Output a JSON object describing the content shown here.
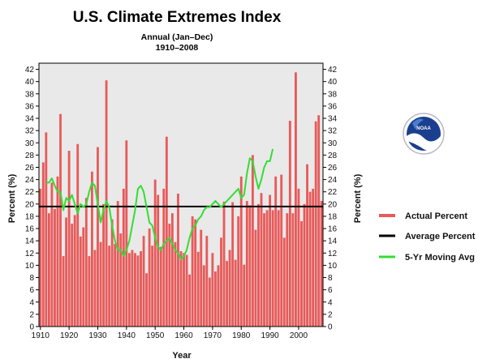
{
  "chart_data": {
    "type": "bar",
    "title": "U.S. Climate Extremes Index",
    "subtitle_line1": "Annual (Jan–Dec)",
    "subtitle_line2": "1910–2008",
    "xlabel": "Year",
    "ylabel": "Percent (%)",
    "ylabel_right": "Percent (%)",
    "ylim": [
      0,
      43
    ],
    "yticks": [
      "0",
      "2",
      "4",
      "6",
      "8",
      "10",
      "12",
      "14",
      "16",
      "18",
      "20",
      "22",
      "24",
      "26",
      "28",
      "30",
      "32",
      "34",
      "36",
      "38",
      "40",
      "42"
    ],
    "xticks": [
      "1910",
      "1920",
      "1930",
      "1940",
      "1950",
      "1960",
      "1970",
      "1980",
      "1990",
      "2000"
    ],
    "xtick_values": [
      1910,
      1920,
      1930,
      1940,
      1950,
      1960,
      1970,
      1980,
      1990,
      2000
    ],
    "years": [
      1910,
      1911,
      1912,
      1913,
      1914,
      1915,
      1916,
      1917,
      1918,
      1919,
      1920,
      1921,
      1922,
      1923,
      1924,
      1925,
      1926,
      1927,
      1928,
      1929,
      1930,
      1931,
      1932,
      1933,
      1934,
      1935,
      1936,
      1937,
      1938,
      1939,
      1940,
      1941,
      1942,
      1943,
      1944,
      1945,
      1946,
      1947,
      1948,
      1949,
      1950,
      1951,
      1952,
      1953,
      1954,
      1955,
      1956,
      1957,
      1958,
      1959,
      1960,
      1961,
      1962,
      1963,
      1964,
      1965,
      1966,
      1967,
      1968,
      1969,
      1970,
      1971,
      1972,
      1973,
      1974,
      1975,
      1976,
      1977,
      1978,
      1979,
      1980,
      1981,
      1982,
      1983,
      1984,
      1985,
      1986,
      1987,
      1988,
      1989,
      1990,
      1991,
      1992,
      1993,
      1994,
      1995,
      1996,
      1997,
      1998,
      1999,
      2000,
      2001,
      2002,
      2003,
      2004,
      2005,
      2006,
      2007,
      2008
    ],
    "series": [
      {
        "name": "Actual Percent",
        "color": "#e85a5a",
        "values": [
          22.5,
          26.8,
          31.7,
          18.5,
          23.5,
          19.2,
          24.5,
          34.7,
          11.5,
          17.8,
          28.7,
          16.8,
          18.2,
          29.8,
          14.7,
          16.2,
          21.0,
          11.5,
          25.3,
          12.5,
          29.3,
          13.8,
          20.0,
          40.2,
          13.2,
          17.5,
          13.5,
          20.5,
          15.2,
          22.5,
          30.4,
          12.0,
          12.5,
          12.0,
          11.6,
          12.3,
          14.8,
          8.7,
          16.0,
          13.2,
          24.0,
          21.5,
          13.0,
          22.5,
          31.0,
          16.8,
          18.5,
          13.8,
          21.7,
          12.3,
          12.0,
          11.7,
          8.5,
          18.0,
          17.5,
          12.2,
          15.8,
          10.0,
          14.8,
          8.0,
          12.0,
          9.0,
          10.0,
          14.5,
          20.4,
          10.7,
          12.5,
          20.3,
          10.9,
          18.0,
          24.5,
          10.1,
          20.5,
          19.8,
          28.0,
          15.8,
          20.0,
          21.8,
          18.5,
          19.0,
          21.5,
          19.0,
          24.5,
          19.0,
          24.8,
          14.5,
          18.5,
          33.6,
          18.5,
          41.5,
          22.5,
          17.2,
          20.0,
          26.5,
          22.0,
          22.5,
          33.5,
          34.5,
          20.5
        ]
      },
      {
        "name": "Average Percent",
        "color": "#000000",
        "value": 19.6
      },
      {
        "name": "5-Yr Moving Avg",
        "color": "#33dd33",
        "start_year": 1912,
        "values": [
          23.5,
          23.5,
          24.2,
          23.0,
          22.0,
          22.0,
          19.0,
          21.0,
          20.5,
          21.5,
          20.0,
          18.5,
          20.0,
          19.5,
          20.0,
          22.0,
          23.5,
          23.0,
          20.0,
          17.0,
          19.0,
          20.5,
          19.5,
          16.5,
          14.0,
          12.5,
          12.5,
          11.5,
          12.5,
          14.0,
          16.5,
          19.0,
          22.5,
          23.0,
          22.0,
          19.5,
          17.0,
          16.5,
          14.5,
          13.0,
          12.5,
          13.5,
          14.0,
          14.5,
          13.5,
          12.5,
          12.0,
          11.0,
          11.5,
          12.5,
          14.5,
          16.0,
          16.5,
          17.5,
          18.0,
          19.0,
          19.5,
          19.5,
          20.0,
          20.5,
          20.0,
          19.5,
          20.0,
          20.5,
          21.0,
          21.5,
          22.0,
          22.5,
          21.0,
          21.5,
          25.0,
          27.5,
          27.0,
          24.5,
          22.5,
          24.0,
          26.0,
          27.0,
          27.0,
          29.0
        ]
      }
    ],
    "legend_position": "right",
    "grid": false
  }
}
